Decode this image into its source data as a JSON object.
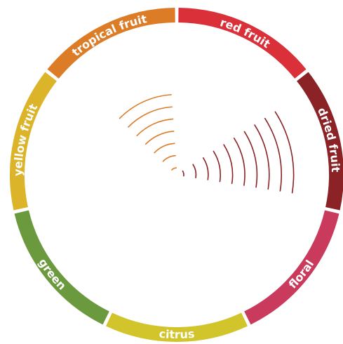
{
  "chart_data": {
    "type": "radial-bar",
    "title": "",
    "rings_scale_max": 10,
    "categories": [
      {
        "label": "red fruit",
        "color": "#d9303a",
        "value": 0
      },
      {
        "label": "dried fruit",
        "color": "#8a2226",
        "value": 10
      },
      {
        "label": "floral",
        "color": "#c93a5c",
        "value": 0
      },
      {
        "label": "citrus",
        "color": "#d2c42b",
        "value": 0
      },
      {
        "label": "green",
        "color": "#6b9a3e",
        "value": 0
      },
      {
        "label": "yellow fruit",
        "color": "#dcb42a",
        "value": 0
      },
      {
        "label": "tropical fruit",
        "color": "#dc7c27",
        "value": 7
      }
    ]
  }
}
